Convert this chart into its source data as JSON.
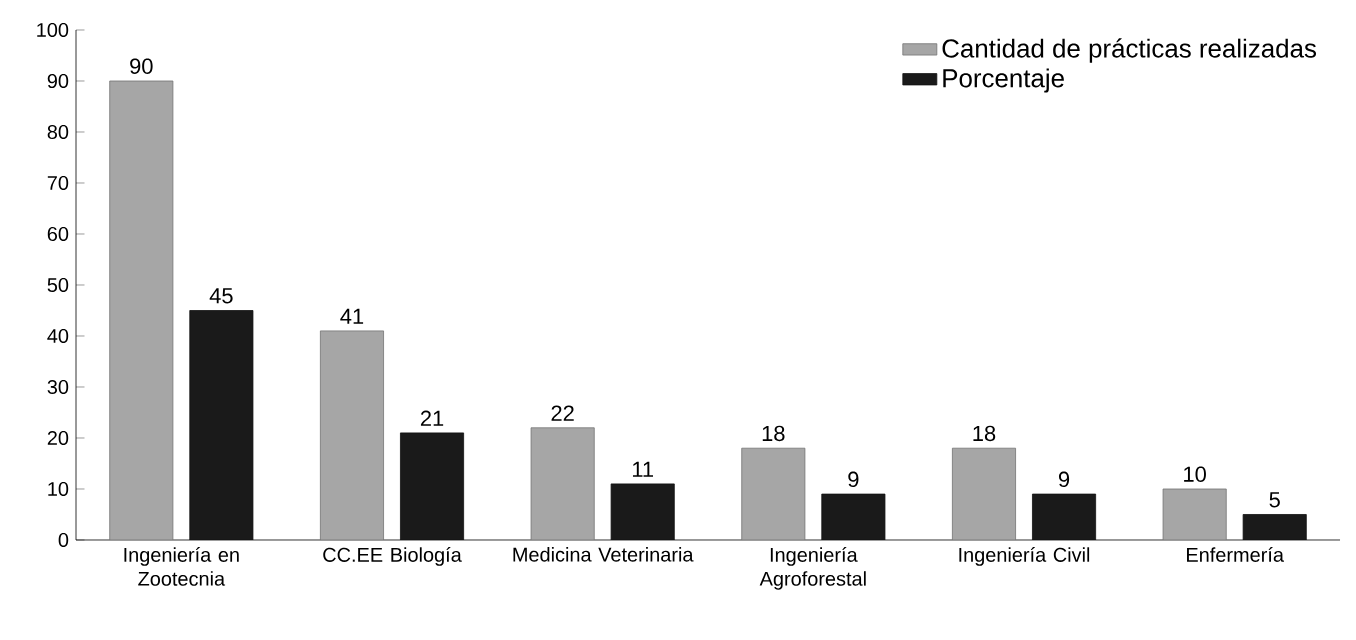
{
  "chart_data": {
    "type": "bar",
    "categories": [
      "Ingeniería en Zootecnia",
      "CC.EE Biología",
      "Medicina Veterinaria",
      "Ingeniería Agroforestal",
      "Ingeniería Civil",
      "Enfermería"
    ],
    "series": [
      {
        "name": "Cantidad de prácticas realizadas",
        "color": "#a6a6a6",
        "values": [
          90,
          41,
          22,
          18,
          18,
          10
        ]
      },
      {
        "name": "Porcentaje",
        "color": "#1a1a1a",
        "values": [
          45,
          21,
          11,
          9,
          9,
          5
        ]
      }
    ],
    "ylim": [
      0,
      100
    ],
    "yticks": [
      0,
      10,
      20,
      30,
      40,
      50,
      60,
      70,
      80,
      90,
      100
    ],
    "data_labels": true,
    "legend": "top right",
    "grid": false
  }
}
